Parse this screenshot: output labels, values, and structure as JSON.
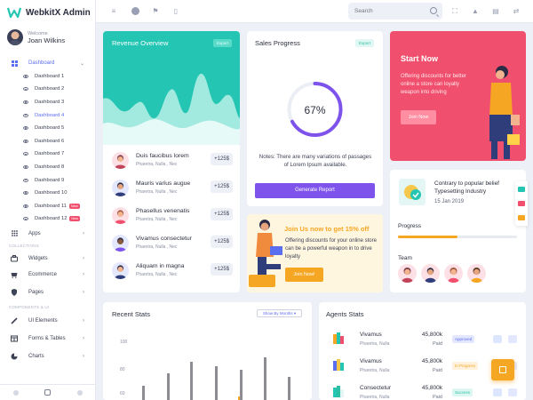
{
  "app": {
    "title": "WebkitX Admin"
  },
  "user": {
    "welcome": "Welcome",
    "name": "Joan Wilkins"
  },
  "sidebar": {
    "dashboard_label": "Dashboard",
    "sub_items": [
      {
        "label": "Dashboard 1"
      },
      {
        "label": "Dashboard 2"
      },
      {
        "label": "Dashboard 3"
      },
      {
        "label": "Dashboard 4"
      },
      {
        "label": "Dashboard 5"
      },
      {
        "label": "Dashboard 6"
      },
      {
        "label": "Dashboard 7"
      },
      {
        "label": "Dashboard 8"
      },
      {
        "label": "Dashboard 9"
      },
      {
        "label": "Dashboard 10"
      },
      {
        "label": "Dashboard 11"
      },
      {
        "label": "Dashboard 12"
      }
    ],
    "new_badge": "New",
    "apps_label": "Apps",
    "section_collections": "COLLECTIONS",
    "widgets_label": "Widgets",
    "ecommerce_label": "Ecommerce",
    "pages_label": "Pages",
    "section_components": "COMPONENTS & UI",
    "ui_elements_label": "UI Elements",
    "forms_tables_label": "Forms & Tables",
    "charts_label": "Charts"
  },
  "topbar": {
    "search_placeholder": "Search"
  },
  "revenue": {
    "title": "Revenue Overview",
    "export_label": "Export",
    "rows": [
      {
        "name": "Duis faucibus lorem",
        "sub": "Pharetra, Nulla , Nec",
        "amount": "+125$"
      },
      {
        "name": "Mauris varius augue",
        "sub": "Pharetra, Nulla , Nec",
        "amount": "+125$"
      },
      {
        "name": "Phasellus venenatis",
        "sub": "Pharetra, Nulla , Nec",
        "amount": "+125$"
      },
      {
        "name": "Vivamus consectetur",
        "sub": "Pharetra, Nulla , Nec",
        "amount": "+125$"
      },
      {
        "name": "Aliquam in magna",
        "sub": "Pharetra, Nulla , Nec",
        "amount": "+125$"
      }
    ]
  },
  "sales": {
    "title": "Sales Progress",
    "export_label": "Export",
    "percent_text": "67%",
    "percent_value": 67,
    "note": "Notes: There are many variations of passages of Lorem Ipsum available.",
    "button_label": "Generate Report",
    "ring_color": "#7e53ec"
  },
  "startnow": {
    "title": "Start Now",
    "text": "Offering discounts for better online a store can loyalty weapon into driving",
    "button_label": "Join Now"
  },
  "contrary": {
    "title": "Contrary to popular belief Typesetting Industry",
    "date": "15 Jan 2019",
    "progress_label": "Progress",
    "progress_value": 0.5,
    "team_label": "Team"
  },
  "joinus": {
    "title": "Join Us now to get 15% off",
    "text": "Offering discounts for your online store can be a powerful weapon in to drive loyalty",
    "button_label": "Join Now!"
  },
  "recent_stats": {
    "title": "Recent Stats",
    "show_by": "Show By Months",
    "y_ticks": [
      "100",
      "80",
      "60"
    ]
  },
  "agents_stats": {
    "title": "Agents Stats",
    "rows": [
      {
        "name": "Vivamus",
        "sub": "Pharetra, Nulla",
        "amount": "45,800k",
        "paid": "Paid",
        "status": "Approved",
        "status_color": "#5a6ef0",
        "status_bg": "#e4e8ff"
      },
      {
        "name": "Vivamus",
        "sub": "Pharetra, Nulla",
        "amount": "45,800k",
        "paid": "Paid",
        "status": "In Progress",
        "status_color": "#f5a623",
        "status_bg": "#fff1dc"
      },
      {
        "name": "Consectetur",
        "sub": "Pharetra, Nulla",
        "amount": "45,800k",
        "paid": "Paid",
        "status": "Success",
        "status_color": "#2bbfa5",
        "status_bg": "#dcf7f1"
      }
    ]
  },
  "colors": {
    "accent": "#5a6ef0",
    "teal": "#24c6b3",
    "purple": "#7e53ec",
    "red": "#f0506e",
    "orange": "#f5a623"
  }
}
